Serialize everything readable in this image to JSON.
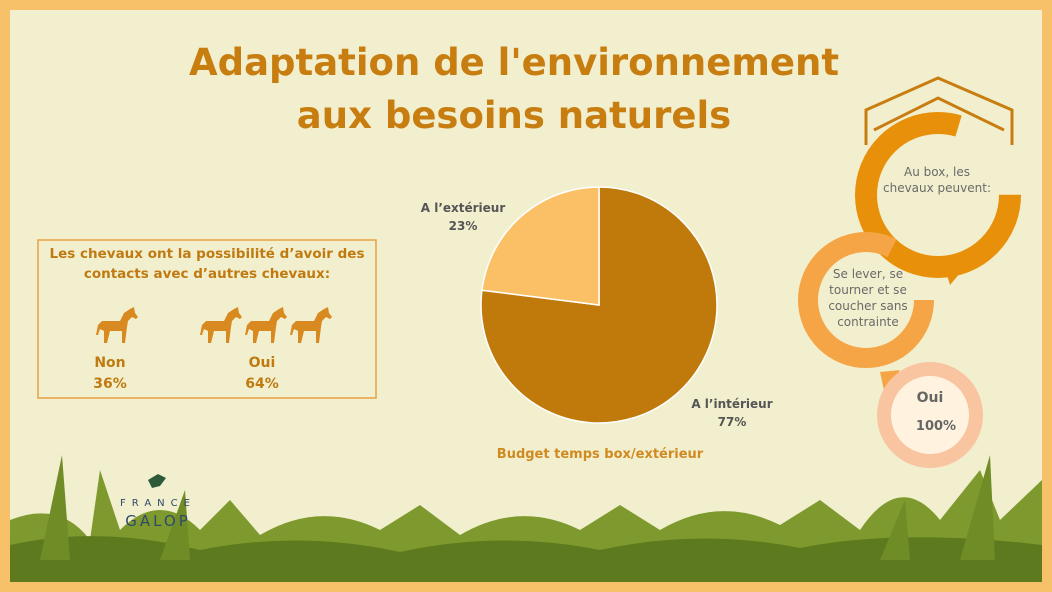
{
  "title": [
    "Adaptation de l'environnement",
    "aux besoins naturels"
  ],
  "contacts": {
    "text": "Les chevaux ont la possibilité d’avoir des contacts avec d’autres chevaux:",
    "items": [
      {
        "label": "Non",
        "value": "36%"
      },
      {
        "label": "Oui",
        "value": "64%"
      }
    ]
  },
  "chart_data": {
    "type": "pie",
    "title": "Budget temps box/extérieur",
    "categories": [
      "A l’extérieur",
      "A l’intérieur"
    ],
    "values": [
      23,
      77
    ],
    "value_labels": [
      "23%",
      "77%"
    ],
    "colors": [
      "#fbc065",
      "#c07a0c"
    ]
  },
  "cycle": {
    "steps": [
      "Au box, les chevaux peuvent:",
      "Se lever, se tourner et se coucher sans contrainte"
    ],
    "answer": "Oui",
    "answer_value": "100%"
  },
  "logo": {
    "line1": "FRANCE",
    "line2": "GALOP"
  }
}
